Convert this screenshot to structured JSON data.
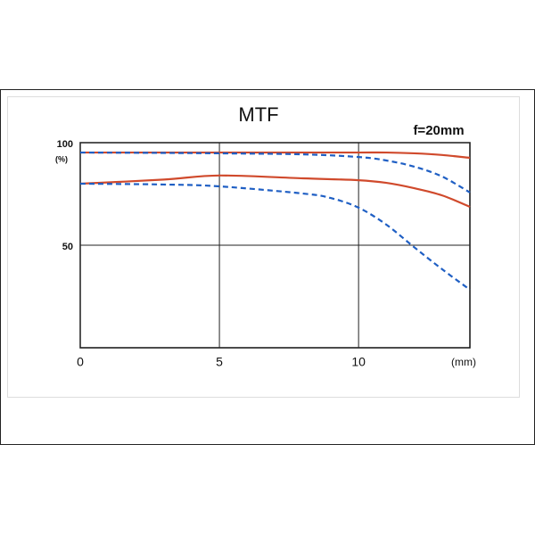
{
  "chart_data": {
    "type": "line",
    "title": "MTF",
    "subtitle": "f=20mm",
    "ylabel": "(%)",
    "xlabel": "(mm)",
    "xlim": [
      0,
      14
    ],
    "xticks": [
      0,
      5,
      10
    ],
    "ylim": [
      0,
      100
    ],
    "yticks": [
      50,
      100
    ],
    "grid": true,
    "series": [
      {
        "color": "#d04a2c",
        "style": "solid",
        "x": [
          0,
          3,
          5,
          8,
          10,
          11,
          12,
          13,
          14
        ],
        "values": [
          95.2,
          95.2,
          95.2,
          95.2,
          95.2,
          95.2,
          94.8,
          94,
          92.6
        ]
      },
      {
        "color": "#d04a2c",
        "style": "solid",
        "x": [
          0,
          3,
          5,
          8,
          10,
          11,
          12,
          13,
          14
        ],
        "values": [
          80,
          82,
          84,
          82.6,
          81.7,
          80.4,
          77.8,
          74.3,
          68.7
        ]
      },
      {
        "color": "#1f5fc4",
        "style": "dashed",
        "x": [
          0,
          3,
          5,
          8,
          10,
          11,
          12,
          13,
          14
        ],
        "values": [
          95.2,
          95,
          94.8,
          94.3,
          93,
          91.3,
          88.3,
          83.5,
          75.7
        ]
      },
      {
        "color": "#1f5fc4",
        "style": "dashed",
        "x": [
          0,
          3,
          5,
          8,
          9,
          10,
          11,
          12,
          13,
          14
        ],
        "values": [
          80,
          79.6,
          78.7,
          75.2,
          73,
          68.3,
          60,
          49,
          38.3,
          28.3
        ]
      }
    ]
  }
}
